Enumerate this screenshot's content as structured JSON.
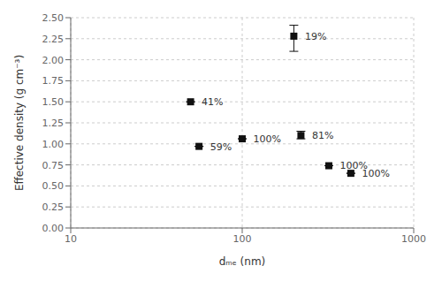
{
  "chart_data": {
    "type": "scatter",
    "x": [
      50,
      56,
      100,
      200,
      220,
      320,
      430
    ],
    "values": [
      1.5,
      0.97,
      1.06,
      2.28,
      1.1,
      0.74,
      0.65
    ],
    "yerr_low": [
      0.0,
      0.0,
      0.0,
      0.18,
      0.04,
      0.0,
      0.0
    ],
    "yerr_high": [
      0.0,
      0.0,
      0.0,
      0.13,
      0.05,
      0.0,
      0.0
    ],
    "labels": [
      "41%",
      "59%",
      "100%",
      "19%",
      "81%",
      "100%",
      "100%"
    ],
    "xlabel": "dₘₑ (nm)",
    "ylabel": "Effective density (g cm⁻³)",
    "xlim": [
      10,
      1000
    ],
    "ylim": [
      0.0,
      2.5
    ],
    "xticks": [
      10,
      100,
      1000
    ],
    "yticks": [
      {
        "value": 0,
        "label": "0.00"
      },
      0.25,
      {
        "value": 0.5,
        "label": "0.50"
      },
      0.75,
      {
        "value": 1,
        "label": "1.00"
      },
      1.25,
      {
        "value": 1.5,
        "label": "1.50"
      },
      1.75,
      {
        "value": 2,
        "label": "2.00"
      },
      2.25,
      {
        "value": 2.5,
        "label": "2.50"
      }
    ],
    "log": "x",
    "grid": true,
    "marker": "square",
    "color": "#111111"
  }
}
